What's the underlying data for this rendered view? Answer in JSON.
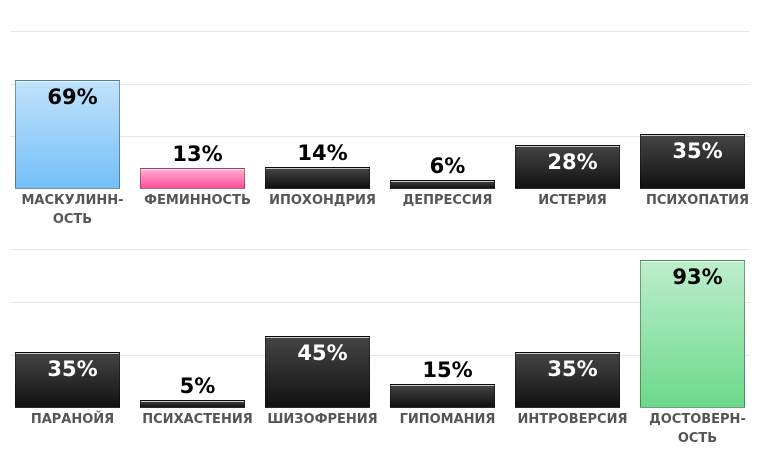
{
  "chart_data": [
    {
      "type": "bar",
      "categories": [
        "МАСКУЛИНН-\nОСТЬ",
        "ФЕМИННОСТЬ",
        "ИПОХОНДРИЯ",
        "ДЕПРЕССИЯ",
        "ИСТЕРИЯ",
        "ПСИХОПАТИЯ"
      ],
      "values": [
        69,
        13,
        14,
        6,
        28,
        35
      ],
      "value_labels": [
        "69%",
        "13%",
        "14%",
        "6%",
        "28%",
        "35%"
      ],
      "colors": [
        "#74bff7",
        "#ff4f9a",
        "#111111",
        "#111111",
        "#111111",
        "#111111"
      ],
      "ylim": [
        0,
        100
      ],
      "yticks": [
        33.3,
        66.7,
        100
      ],
      "grid": true
    },
    {
      "type": "bar",
      "categories": [
        "ПАРАНОЙЯ",
        "ПСИХАСТЕНИЯ",
        "ШИЗОФРЕНИЯ",
        "ГИПОМАНИЯ",
        "ИНТРОВЕРСИЯ",
        "ДОСТОВЕРН-\nОСТЬ"
      ],
      "values": [
        35,
        5,
        45,
        15,
        35,
        93
      ],
      "value_labels": [
        "35%",
        "5%",
        "45%",
        "15%",
        "35%",
        "93%"
      ],
      "colors": [
        "#111111",
        "#111111",
        "#111111",
        "#111111",
        "#111111",
        "#6cd98c"
      ],
      "ylim": [
        0,
        100
      ],
      "yticks": [
        33.3,
        66.7,
        100
      ],
      "grid": true
    }
  ]
}
